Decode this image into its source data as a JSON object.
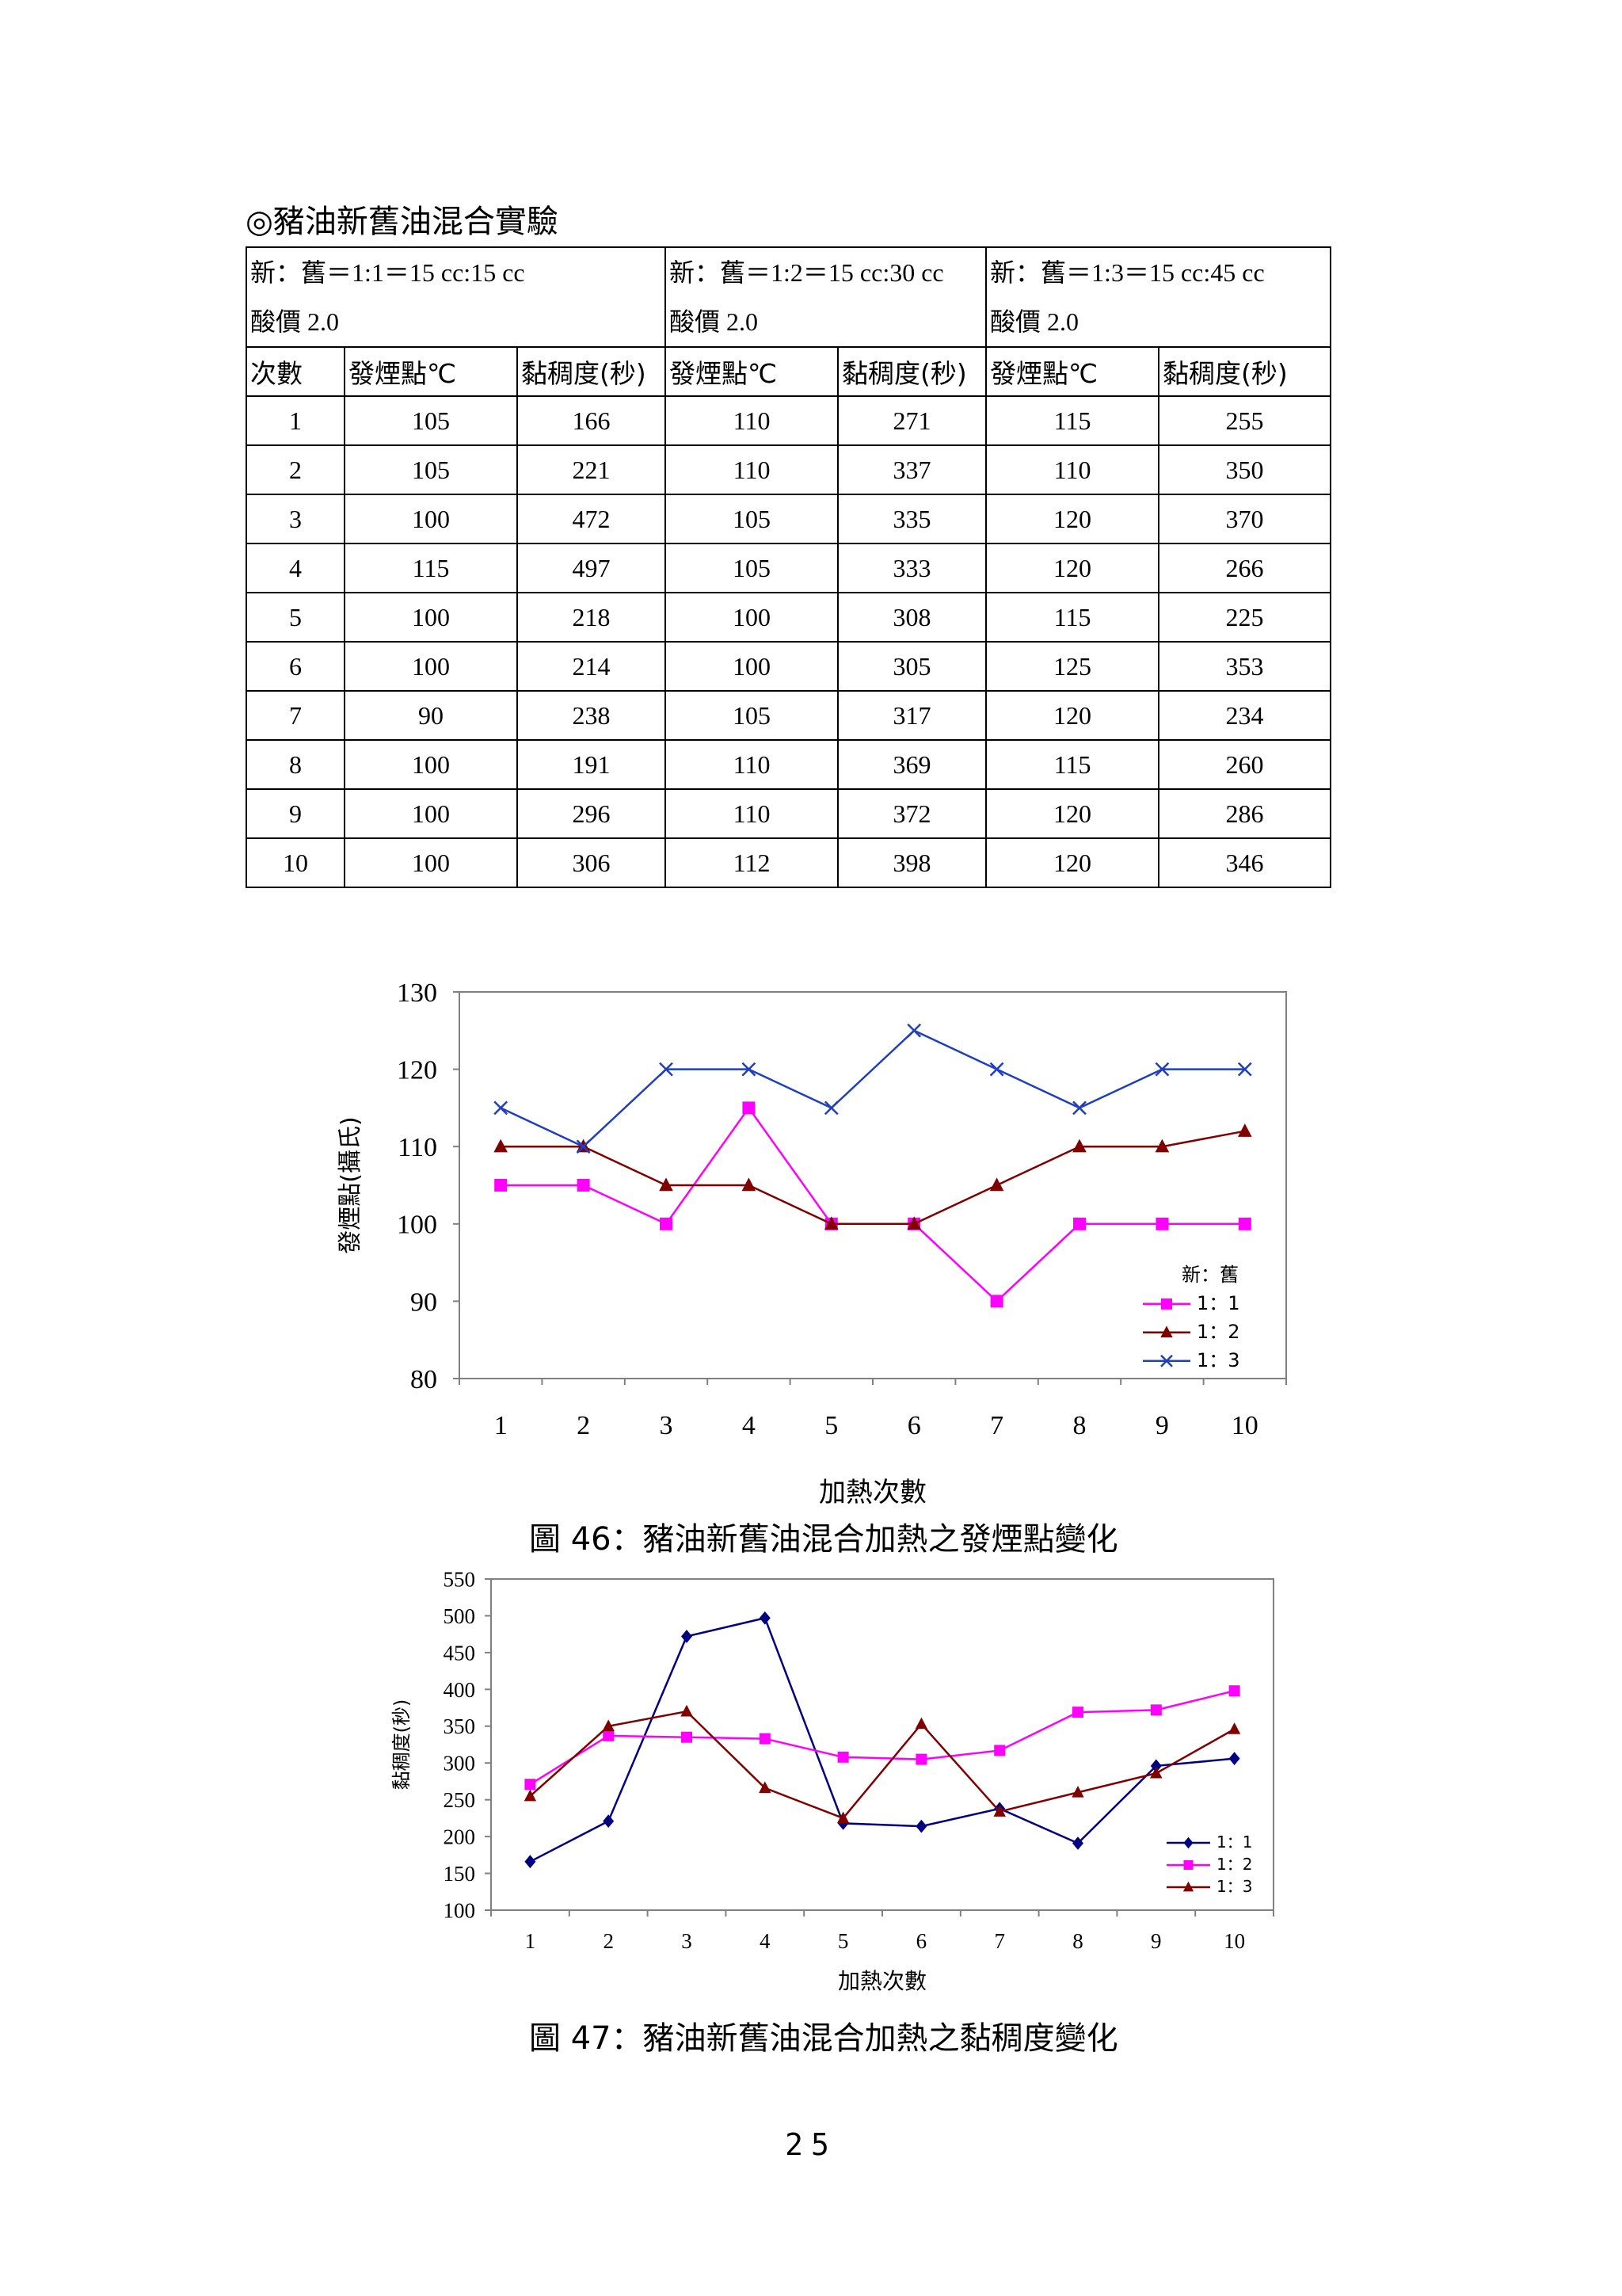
{
  "heading": "◎豬油新舊油混合實驗",
  "table": {
    "groups": [
      {
        "ratio": "新：舊＝1:1＝15 cc:15 cc",
        "acid": "酸價 2.0"
      },
      {
        "ratio": "新：舊＝1:2＝15 cc:30 cc",
        "acid": "酸價 2.0"
      },
      {
        "ratio": "新：舊＝1:3＝15 cc:45 cc",
        "acid": "酸價 2.0"
      }
    ],
    "columns": [
      "次數",
      "發煙點℃",
      "黏稠度(秒)",
      "發煙點℃",
      "黏稠度(秒)",
      "發煙點℃",
      "黏稠度(秒)"
    ],
    "rows": [
      [
        "1",
        "105",
        "166",
        "110",
        "271",
        "115",
        "255"
      ],
      [
        "2",
        "105",
        "221",
        "110",
        "337",
        "110",
        "350"
      ],
      [
        "3",
        "100",
        "472",
        "105",
        "335",
        "120",
        "370"
      ],
      [
        "4",
        "115",
        "497",
        "105",
        "333",
        "120",
        "266"
      ],
      [
        "5",
        "100",
        "218",
        "100",
        "308",
        "115",
        "225"
      ],
      [
        "6",
        "100",
        "214",
        "100",
        "305",
        "125",
        "353"
      ],
      [
        "7",
        "90",
        "238",
        "105",
        "317",
        "120",
        "234"
      ],
      [
        "8",
        "100",
        "191",
        "110",
        "369",
        "115",
        "260"
      ],
      [
        "9",
        "100",
        "296",
        "110",
        "372",
        "120",
        "286"
      ],
      [
        "10",
        "100",
        "306",
        "112",
        "398",
        "120",
        "346"
      ]
    ]
  },
  "chart_data": [
    {
      "type": "line",
      "title": "",
      "xlabel": "加熱次數",
      "ylabel": "發煙點(攝氏)",
      "ylim": [
        80,
        130
      ],
      "yticks": [
        "80",
        "90",
        "100",
        "110",
        "120",
        "130"
      ],
      "categories": [
        "1",
        "2",
        "3",
        "4",
        "5",
        "6",
        "7",
        "8",
        "9",
        "10"
      ],
      "legend_title": "新：舊",
      "legend_position": "bottom-right",
      "grid": false,
      "series": [
        {
          "name": "1：1",
          "marker": "square",
          "color": "#ff00ff",
          "values": [
            105,
            105,
            100,
            115,
            100,
            100,
            90,
            100,
            100,
            100
          ]
        },
        {
          "name": "1：2",
          "marker": "triangle",
          "color": "#800000",
          "values": [
            110,
            110,
            105,
            105,
            100,
            100,
            105,
            110,
            110,
            112
          ]
        },
        {
          "name": "1：3",
          "marker": "x",
          "color": "#1f3fbf",
          "values": [
            115,
            110,
            120,
            120,
            115,
            125,
            120,
            115,
            120,
            120
          ]
        }
      ]
    },
    {
      "type": "line",
      "title": "",
      "xlabel": "加熱次數",
      "ylabel": "黏稠度(秒)",
      "ylim": [
        100,
        550
      ],
      "yticks": [
        "100",
        "150",
        "200",
        "250",
        "300",
        "350",
        "400",
        "450",
        "500",
        "550"
      ],
      "categories": [
        "1",
        "2",
        "3",
        "4",
        "5",
        "6",
        "7",
        "8",
        "9",
        "10"
      ],
      "legend_position": "bottom-right",
      "grid": false,
      "series": [
        {
          "name": "1：1",
          "marker": "diamond",
          "color": "#000080",
          "values": [
            166,
            221,
            472,
            497,
            218,
            214,
            238,
            191,
            296,
            306
          ]
        },
        {
          "name": "1：2",
          "marker": "square",
          "color": "#ff00ff",
          "values": [
            271,
            337,
            335,
            333,
            308,
            305,
            317,
            369,
            372,
            398
          ]
        },
        {
          "name": "1：3",
          "marker": "triangle",
          "color": "#800000",
          "values": [
            255,
            350,
            370,
            266,
            225,
            353,
            234,
            260,
            286,
            346
          ]
        }
      ]
    }
  ],
  "captions": {
    "fig46": "圖 46：豬油新舊油混合加熱之發煙點變化",
    "fig47": "圖 47：豬油新舊油混合加熱之黏稠度變化"
  },
  "page_number": "25"
}
